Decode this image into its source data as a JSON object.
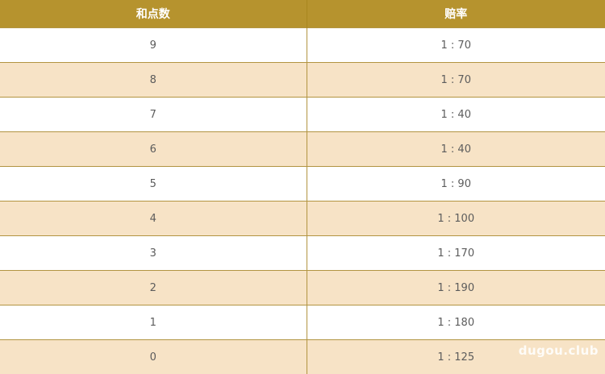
{
  "colors": {
    "header_bg": "#b6932e",
    "header_text": "#ffffff",
    "row_alt_bg": "#f7e3c6",
    "row_bg": "#ffffff",
    "border": "#b29441",
    "cell_text": "#5c5c5c"
  },
  "table": {
    "columns": [
      {
        "label": "和点数"
      },
      {
        "label": "赔率"
      }
    ],
    "rows": [
      {
        "points": "9",
        "odds": "1 : 70"
      },
      {
        "points": "8",
        "odds": "1 : 70"
      },
      {
        "points": "7",
        "odds": "1 : 40"
      },
      {
        "points": "6",
        "odds": "1 : 40"
      },
      {
        "points": "5",
        "odds": "1 : 90"
      },
      {
        "points": "4",
        "odds": "1 : 100"
      },
      {
        "points": "3",
        "odds": "1 : 170"
      },
      {
        "points": "2",
        "odds": "1 : 190"
      },
      {
        "points": "1",
        "odds": "1 : 180"
      },
      {
        "points": "0",
        "odds": "1 : 125"
      }
    ]
  },
  "watermark": {
    "label": "dugou.club"
  }
}
